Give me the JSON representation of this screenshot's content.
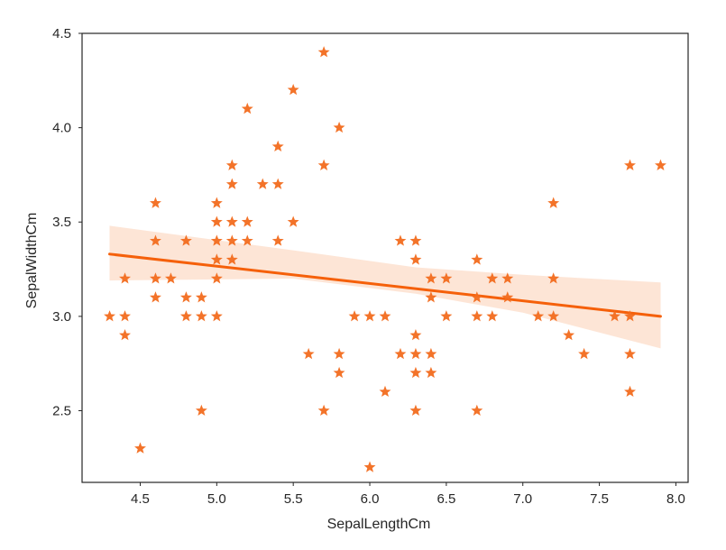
{
  "chart_data": {
    "type": "scatter",
    "title": "",
    "xlabel": "SepalLengthCm",
    "ylabel": "SepalWidthCm",
    "xlim": [
      4.12,
      8.08
    ],
    "ylim": [
      2.12,
      4.5
    ],
    "xticks": [
      4.5,
      5.0,
      5.5,
      6.0,
      6.5,
      7.0,
      7.5,
      8.0
    ],
    "xtick_labels": [
      "4.5",
      "5.0",
      "5.5",
      "6.0",
      "6.5",
      "7.0",
      "7.5",
      "8.0"
    ],
    "yticks": [
      2.5,
      3.0,
      3.5,
      4.0,
      4.5
    ],
    "ytick_labels": [
      "2.5",
      "3.0",
      "3.5",
      "4.0",
      "4.5"
    ],
    "grid": false,
    "marker": "star",
    "colors": {
      "points": "#f26b1d",
      "regression_line": "#f5600a",
      "confidence_band": "#fde0cf",
      "axes": "#262626"
    },
    "points": [
      [
        4.3,
        3.0
      ],
      [
        4.4,
        3.2
      ],
      [
        4.4,
        3.0
      ],
      [
        4.4,
        2.9
      ],
      [
        4.5,
        2.3
      ],
      [
        4.6,
        3.6
      ],
      [
        4.6,
        3.4
      ],
      [
        4.6,
        3.2
      ],
      [
        4.6,
        3.1
      ],
      [
        4.7,
        3.2
      ],
      [
        4.8,
        3.4
      ],
      [
        4.8,
        3.1
      ],
      [
        4.8,
        3.0
      ],
      [
        4.9,
        3.1
      ],
      [
        4.9,
        3.0
      ],
      [
        4.9,
        2.5
      ],
      [
        5.0,
        3.6
      ],
      [
        5.0,
        3.5
      ],
      [
        5.0,
        3.4
      ],
      [
        5.0,
        3.3
      ],
      [
        5.0,
        3.2
      ],
      [
        5.0,
        3.0
      ],
      [
        5.1,
        3.8
      ],
      [
        5.1,
        3.7
      ],
      [
        5.1,
        3.5
      ],
      [
        5.1,
        3.4
      ],
      [
        5.1,
        3.3
      ],
      [
        5.2,
        4.1
      ],
      [
        5.2,
        3.5
      ],
      [
        5.2,
        3.4
      ],
      [
        5.3,
        3.7
      ],
      [
        5.4,
        3.9
      ],
      [
        5.4,
        3.7
      ],
      [
        5.4,
        3.4
      ],
      [
        5.5,
        4.2
      ],
      [
        5.5,
        3.5
      ],
      [
        5.6,
        2.8
      ],
      [
        5.7,
        4.4
      ],
      [
        5.7,
        3.8
      ],
      [
        5.7,
        2.5
      ],
      [
        5.8,
        4.0
      ],
      [
        5.8,
        2.8
      ],
      [
        5.8,
        2.7
      ],
      [
        5.9,
        3.0
      ],
      [
        6.0,
        3.0
      ],
      [
        6.0,
        2.2
      ],
      [
        6.1,
        3.0
      ],
      [
        6.1,
        2.6
      ],
      [
        6.2,
        3.4
      ],
      [
        6.2,
        2.8
      ],
      [
        6.3,
        3.4
      ],
      [
        6.3,
        3.3
      ],
      [
        6.3,
        2.9
      ],
      [
        6.3,
        2.8
      ],
      [
        6.3,
        2.7
      ],
      [
        6.3,
        2.5
      ],
      [
        6.4,
        3.2
      ],
      [
        6.4,
        3.1
      ],
      [
        6.4,
        2.8
      ],
      [
        6.4,
        2.7
      ],
      [
        6.5,
        3.2
      ],
      [
        6.5,
        3.0
      ],
      [
        6.7,
        3.3
      ],
      [
        6.7,
        3.1
      ],
      [
        6.7,
        3.0
      ],
      [
        6.7,
        2.5
      ],
      [
        6.8,
        3.2
      ],
      [
        6.8,
        3.0
      ],
      [
        6.9,
        3.2
      ],
      [
        6.9,
        3.1
      ],
      [
        7.1,
        3.0
      ],
      [
        7.2,
        3.6
      ],
      [
        7.2,
        3.2
      ],
      [
        7.2,
        3.0
      ],
      [
        7.3,
        2.9
      ],
      [
        7.4,
        2.8
      ],
      [
        7.6,
        3.0
      ],
      [
        7.7,
        3.8
      ],
      [
        7.7,
        3.0
      ],
      [
        7.7,
        2.8
      ],
      [
        7.7,
        2.6
      ],
      [
        7.9,
        3.8
      ]
    ],
    "regression": {
      "x": [
        4.3,
        7.9
      ],
      "y": [
        3.33,
        3.0
      ]
    },
    "confidence_band": {
      "x": [
        4.3,
        5.5,
        6.3,
        7.0,
        7.9
      ],
      "lower": [
        3.19,
        3.2,
        3.12,
        3.02,
        2.83
      ],
      "upper": [
        3.48,
        3.35,
        3.26,
        3.22,
        3.18
      ]
    }
  }
}
